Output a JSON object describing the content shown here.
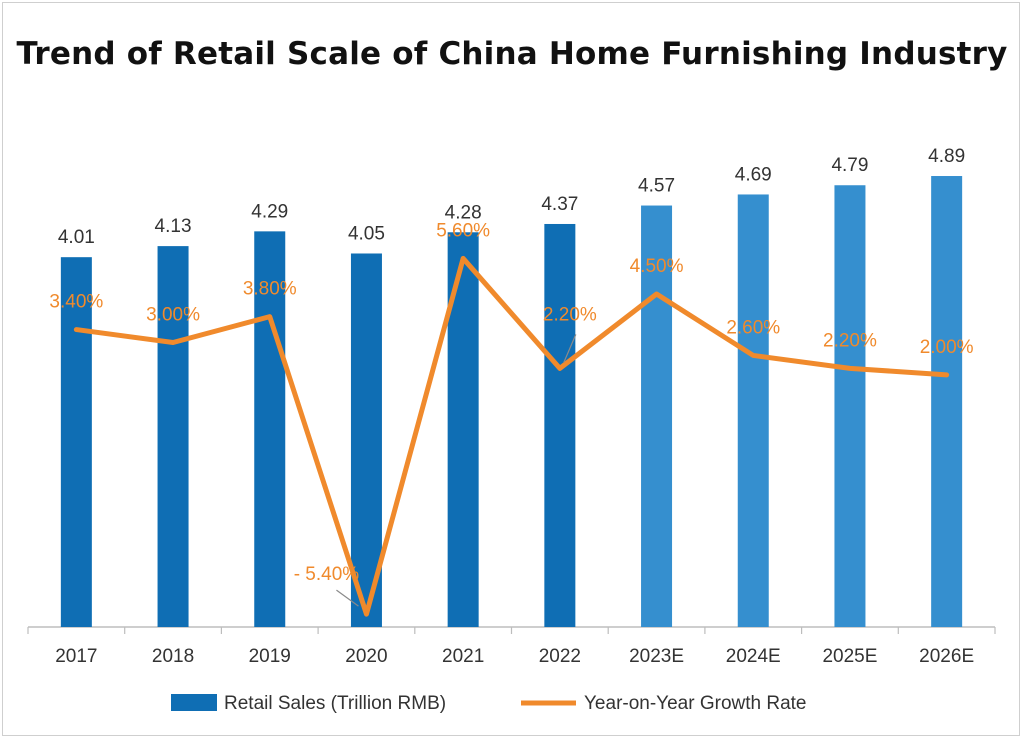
{
  "chart_data": {
    "type": "bar",
    "title": "Trend of Retail Scale of China Home Furnishing Industry",
    "categories": [
      "2017",
      "2018",
      "2019",
      "2020",
      "2021",
      "2022",
      "2023E",
      "2024E",
      "2025E",
      "2026E"
    ],
    "series": [
      {
        "name": "Retail Sales (Trillion RMB)",
        "type": "bar",
        "values": [
          4.01,
          4.13,
          4.29,
          4.05,
          4.28,
          4.37,
          4.57,
          4.69,
          4.79,
          4.89
        ],
        "labels": [
          "4.01",
          "4.13",
          "4.29",
          "4.05",
          "4.28",
          "4.37",
          "4.57",
          "4.69",
          "4.79",
          "4.89"
        ],
        "colors": [
          "#0f6eb4",
          "#0f6eb4",
          "#0f6eb4",
          "#0f6eb4",
          "#0f6eb4",
          "#0f6eb4",
          "#358fcf",
          "#358fcf",
          "#358fcf",
          "#358fcf"
        ]
      },
      {
        "name": "Year-on-Year Growth Rate",
        "type": "line",
        "values": [
          3.4,
          3.0,
          3.8,
          -5.4,
          5.6,
          2.2,
          4.5,
          2.6,
          2.2,
          2.0
        ],
        "labels": [
          "3.40%",
          "3.00%",
          "3.80%",
          "- 5.40%",
          "5.60%",
          "2.20%",
          "4.50%",
          "2.60%",
          "2.20%",
          "2.00%"
        ],
        "color": "#f08a2c"
      }
    ],
    "ylim_bars": [
      0,
      5.6
    ],
    "ylim_line": [
      -6.2,
      10.5
    ],
    "grid": false,
    "legend_position": "bottom",
    "colors": {
      "actual_bar": "#0f6eb4",
      "forecast_bar": "#358fcf",
      "line": "#f08a2c",
      "axis": "#bdbdbd"
    }
  }
}
